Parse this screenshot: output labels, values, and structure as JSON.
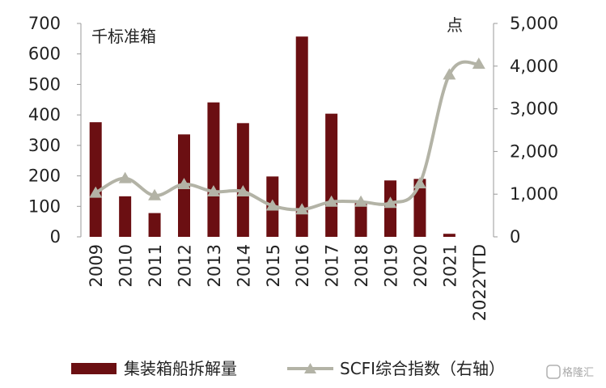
{
  "chart_data": {
    "type": "bar+line",
    "categories": [
      "2009",
      "2010",
      "2011",
      "2012",
      "2013",
      "2014",
      "2015",
      "2016",
      "2017",
      "2018",
      "2019",
      "2020",
      "2021",
      "2022YTD"
    ],
    "series": [
      {
        "name": "集装箱船拆解量",
        "type": "bar",
        "axis": "left",
        "color": "#6b0f12",
        "values": [
          376,
          133,
          78,
          336,
          441,
          373,
          198,
          657,
          404,
          113,
          185,
          190,
          10,
          0
        ]
      },
      {
        "name": "SCFI综合指数（右轴）",
        "type": "line",
        "axis": "right",
        "color": "#b3b3a6",
        "marker": "triangle",
        "values": [
          1030,
          1370,
          970,
          1230,
          1060,
          1060,
          730,
          640,
          820,
          820,
          790,
          1250,
          3800,
          4050
        ]
      }
    ],
    "y_left": {
      "label": "千标准箱",
      "ylim": [
        0,
        700
      ],
      "ticks": [
        "0",
        "100",
        "200",
        "300",
        "400",
        "500",
        "600",
        "700"
      ]
    },
    "y_right": {
      "label": "点",
      "ylim": [
        0,
        5000
      ],
      "ticks": [
        "0",
        "1,000",
        "2,000",
        "3,000",
        "4,000",
        "5,000"
      ]
    },
    "grid": false,
    "legend_position": "bottom"
  },
  "watermark": "格隆汇"
}
